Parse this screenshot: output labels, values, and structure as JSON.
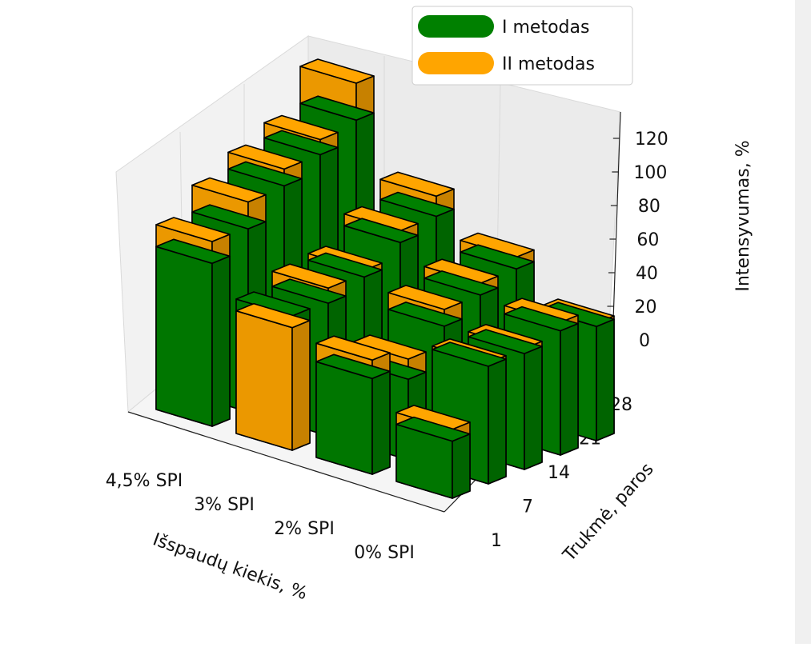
{
  "chart_data": {
    "type": "bar3d",
    "categories": [
      "4,5% SPI",
      "3% SPI",
      "2% SPI",
      "0% SPI"
    ],
    "days": [
      1,
      7,
      14,
      21,
      28
    ],
    "xlabel": "Išspaudų kiekis, %",
    "ylabel": "Trukmė, paros",
    "zlabel": "Intensyvumas, %",
    "zlim": [
      0,
      140
    ],
    "zticks": [
      0,
      20,
      40,
      60,
      80,
      100,
      120
    ],
    "series": [
      {
        "name": "I metodas",
        "color": "#008000",
        "values": [
          [
            97,
            80,
            57,
            34
          ],
          [
            109,
            79,
            48,
            70
          ],
          [
            126,
            86,
            71,
            69
          ],
          [
            136,
            98,
            81,
            74
          ],
          [
            148,
            105,
            88,
            68
          ]
        ]
      },
      {
        "name": "II metodas",
        "color": "#ffa500",
        "values": [
          [
            110,
            73,
            68,
            41
          ],
          [
            125,
            88,
            60,
            72
          ],
          [
            136,
            90,
            81,
            72
          ],
          [
            145,
            105,
            88,
            79
          ],
          [
            170,
            117,
            95,
            70
          ]
        ]
      }
    ]
  }
}
